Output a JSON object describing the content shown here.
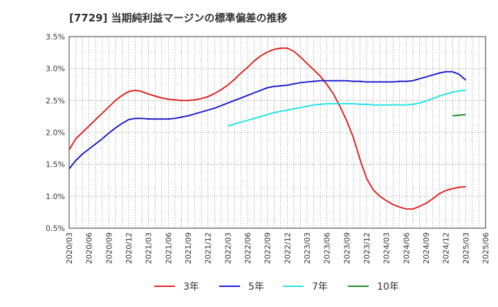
{
  "chart_data": {
    "type": "line",
    "title": "[7729]  当期純利益マージンの標準偏差の推移",
    "xlabel": "",
    "ylabel": "",
    "x_ticks": [
      "2020/03",
      "2020/06",
      "2020/09",
      "2020/12",
      "2021/03",
      "2021/06",
      "2021/09",
      "2021/12",
      "2022/03",
      "2022/06",
      "2022/09",
      "2022/12",
      "2023/03",
      "2023/06",
      "2023/09",
      "2023/12",
      "2024/03",
      "2024/06",
      "2024/09",
      "2024/12",
      "2025/03",
      "2025/06"
    ],
    "y_ticks": [
      "0.5%",
      "1.0%",
      "1.5%",
      "2.0%",
      "2.5%",
      "3.0%",
      "3.5%"
    ],
    "ylim": [
      0.5,
      3.5
    ],
    "y_unit": "%",
    "grid": true,
    "legend_position": "bottom",
    "series": [
      {
        "name": "3年",
        "color": "#dd2222",
        "points": [
          [
            "2020/03",
            1.73
          ],
          [
            "2020/04",
            1.9
          ],
          [
            "2020/05",
            2.0
          ],
          [
            "2020/06",
            2.1
          ],
          [
            "2020/07",
            2.2
          ],
          [
            "2020/08",
            2.3
          ],
          [
            "2020/09",
            2.4
          ],
          [
            "2020/10",
            2.5
          ],
          [
            "2020/11",
            2.58
          ],
          [
            "2020/12",
            2.64
          ],
          [
            "2021/01",
            2.66
          ],
          [
            "2021/02",
            2.64
          ],
          [
            "2021/03",
            2.6
          ],
          [
            "2021/04",
            2.57
          ],
          [
            "2021/05",
            2.54
          ],
          [
            "2021/06",
            2.52
          ],
          [
            "2021/07",
            2.51
          ],
          [
            "2021/08",
            2.5
          ],
          [
            "2021/09",
            2.5
          ],
          [
            "2021/10",
            2.51
          ],
          [
            "2021/11",
            2.53
          ],
          [
            "2021/12",
            2.56
          ],
          [
            "2022/01",
            2.61
          ],
          [
            "2022/02",
            2.67
          ],
          [
            "2022/03",
            2.74
          ],
          [
            "2022/04",
            2.83
          ],
          [
            "2022/05",
            2.93
          ],
          [
            "2022/06",
            3.02
          ],
          [
            "2022/07",
            3.12
          ],
          [
            "2022/08",
            3.2
          ],
          [
            "2022/09",
            3.26
          ],
          [
            "2022/10",
            3.3
          ],
          [
            "2022/11",
            3.32
          ],
          [
            "2022/12",
            3.32
          ],
          [
            "2023/01",
            3.27
          ],
          [
            "2023/02",
            3.18
          ],
          [
            "2023/03",
            3.08
          ],
          [
            "2023/04",
            2.98
          ],
          [
            "2023/05",
            2.88
          ],
          [
            "2023/06",
            2.75
          ],
          [
            "2023/07",
            2.6
          ],
          [
            "2023/08",
            2.4
          ],
          [
            "2023/09",
            2.18
          ],
          [
            "2023/10",
            1.92
          ],
          [
            "2023/11",
            1.58
          ],
          [
            "2023/12",
            1.28
          ],
          [
            "2024/01",
            1.1
          ],
          [
            "2024/02",
            1.0
          ],
          [
            "2024/03",
            0.93
          ],
          [
            "2024/04",
            0.87
          ],
          [
            "2024/05",
            0.83
          ],
          [
            "2024/06",
            0.8
          ],
          [
            "2024/07",
            0.8
          ],
          [
            "2024/08",
            0.84
          ],
          [
            "2024/09",
            0.89
          ],
          [
            "2024/10",
            0.96
          ],
          [
            "2024/11",
            1.04
          ],
          [
            "2024/12",
            1.09
          ],
          [
            "2025/01",
            1.12
          ],
          [
            "2025/02",
            1.14
          ],
          [
            "2025/03",
            1.15
          ]
        ]
      },
      {
        "name": "5年",
        "color": "#1a1acc",
        "points": [
          [
            "2020/03",
            1.43
          ],
          [
            "2020/04",
            1.56
          ],
          [
            "2020/05",
            1.66
          ],
          [
            "2020/06",
            1.74
          ],
          [
            "2020/07",
            1.82
          ],
          [
            "2020/08",
            1.9
          ],
          [
            "2020/09",
            1.99
          ],
          [
            "2020/10",
            2.07
          ],
          [
            "2020/11",
            2.14
          ],
          [
            "2020/12",
            2.2
          ],
          [
            "2021/01",
            2.22
          ],
          [
            "2021/02",
            2.22
          ],
          [
            "2021/03",
            2.21
          ],
          [
            "2021/04",
            2.21
          ],
          [
            "2021/05",
            2.21
          ],
          [
            "2021/06",
            2.21
          ],
          [
            "2021/07",
            2.22
          ],
          [
            "2021/08",
            2.24
          ],
          [
            "2021/09",
            2.26
          ],
          [
            "2021/10",
            2.29
          ],
          [
            "2021/11",
            2.32
          ],
          [
            "2021/12",
            2.35
          ],
          [
            "2022/01",
            2.38
          ],
          [
            "2022/02",
            2.42
          ],
          [
            "2022/03",
            2.46
          ],
          [
            "2022/04",
            2.5
          ],
          [
            "2022/05",
            2.54
          ],
          [
            "2022/06",
            2.58
          ],
          [
            "2022/07",
            2.62
          ],
          [
            "2022/08",
            2.66
          ],
          [
            "2022/09",
            2.7
          ],
          [
            "2022/10",
            2.72
          ],
          [
            "2022/11",
            2.73
          ],
          [
            "2022/12",
            2.74
          ],
          [
            "2023/01",
            2.76
          ],
          [
            "2023/02",
            2.78
          ],
          [
            "2023/03",
            2.79
          ],
          [
            "2023/04",
            2.8
          ],
          [
            "2023/05",
            2.81
          ],
          [
            "2023/06",
            2.81
          ],
          [
            "2023/07",
            2.81
          ],
          [
            "2023/08",
            2.81
          ],
          [
            "2023/09",
            2.81
          ],
          [
            "2023/10",
            2.8
          ],
          [
            "2023/11",
            2.8
          ],
          [
            "2023/12",
            2.79
          ],
          [
            "2024/01",
            2.79
          ],
          [
            "2024/02",
            2.79
          ],
          [
            "2024/03",
            2.79
          ],
          [
            "2024/04",
            2.79
          ],
          [
            "2024/05",
            2.8
          ],
          [
            "2024/06",
            2.8
          ],
          [
            "2024/07",
            2.81
          ],
          [
            "2024/08",
            2.84
          ],
          [
            "2024/09",
            2.87
          ],
          [
            "2024/10",
            2.9
          ],
          [
            "2024/11",
            2.93
          ],
          [
            "2024/12",
            2.95
          ],
          [
            "2025/01",
            2.95
          ],
          [
            "2025/02",
            2.91
          ],
          [
            "2025/03",
            2.82
          ]
        ]
      },
      {
        "name": "7年",
        "color": "#22e5e5",
        "points": [
          [
            "2022/03",
            2.1
          ],
          [
            "2022/04",
            2.13
          ],
          [
            "2022/05",
            2.16
          ],
          [
            "2022/06",
            2.19
          ],
          [
            "2022/07",
            2.22
          ],
          [
            "2022/08",
            2.25
          ],
          [
            "2022/09",
            2.28
          ],
          [
            "2022/10",
            2.31
          ],
          [
            "2022/11",
            2.33
          ],
          [
            "2022/12",
            2.35
          ],
          [
            "2023/01",
            2.37
          ],
          [
            "2023/02",
            2.39
          ],
          [
            "2023/03",
            2.41
          ],
          [
            "2023/04",
            2.43
          ],
          [
            "2023/05",
            2.44
          ],
          [
            "2023/06",
            2.45
          ],
          [
            "2023/07",
            2.45
          ],
          [
            "2023/08",
            2.45
          ],
          [
            "2023/09",
            2.45
          ],
          [
            "2023/10",
            2.45
          ],
          [
            "2023/11",
            2.44
          ],
          [
            "2023/12",
            2.44
          ],
          [
            "2024/01",
            2.43
          ],
          [
            "2024/02",
            2.43
          ],
          [
            "2024/03",
            2.43
          ],
          [
            "2024/04",
            2.43
          ],
          [
            "2024/05",
            2.43
          ],
          [
            "2024/06",
            2.43
          ],
          [
            "2024/07",
            2.44
          ],
          [
            "2024/08",
            2.46
          ],
          [
            "2024/09",
            2.49
          ],
          [
            "2024/10",
            2.53
          ],
          [
            "2024/11",
            2.57
          ],
          [
            "2024/12",
            2.6
          ],
          [
            "2025/01",
            2.63
          ],
          [
            "2025/02",
            2.65
          ],
          [
            "2025/03",
            2.66
          ]
        ]
      },
      {
        "name": "10年",
        "color": "#228b22",
        "points": [
          [
            "2025/01",
            2.26
          ],
          [
            "2025/02",
            2.27
          ],
          [
            "2025/03",
            2.28
          ]
        ]
      }
    ]
  }
}
